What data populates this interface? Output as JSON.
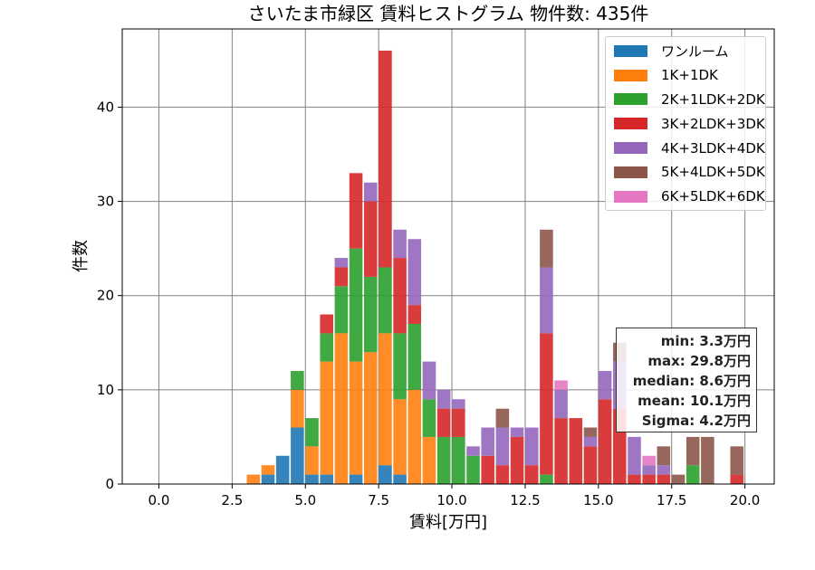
{
  "chart_data": {
    "type": "bar",
    "stacked": true,
    "title": "さいたま市緑区 賃料ヒストグラム 物件数: 435件",
    "xlabel": "賃料[万円]",
    "ylabel": "件数",
    "xlim": [
      -1.25,
      21.0
    ],
    "ylim": [
      0,
      48.3
    ],
    "xticks": [
      0.0,
      2.5,
      5.0,
      7.5,
      10.0,
      12.5,
      15.0,
      17.5,
      20.0
    ],
    "xtick_labels": [
      "0.0",
      "2.5",
      "5.0",
      "7.5",
      "10.0",
      "12.5",
      "15.0",
      "17.5",
      "20.0"
    ],
    "yticks": [
      0,
      10,
      20,
      30,
      40
    ],
    "ytick_labels": [
      "0",
      "10",
      "20",
      "30",
      "40"
    ],
    "grid": true,
    "legend_position": "top-right",
    "bin_width": 0.5,
    "bin_starts": [
      3.0,
      3.5,
      4.0,
      4.5,
      5.0,
      5.5,
      6.0,
      6.5,
      7.0,
      7.5,
      8.0,
      8.5,
      9.0,
      9.5,
      10.0,
      10.5,
      11.0,
      11.5,
      12.0,
      12.5,
      13.0,
      13.5,
      14.0,
      14.5,
      15.0,
      15.5,
      16.0,
      16.5,
      17.0,
      17.5,
      18.0,
      18.5,
      19.0,
      19.5
    ],
    "series": [
      {
        "name": "ワンルーム",
        "color": "#1f77b4",
        "values": [
          0,
          1,
          3,
          6,
          1,
          1,
          0,
          1,
          0,
          2,
          1,
          0,
          0,
          0,
          0,
          0,
          0,
          0,
          0,
          0,
          0,
          0,
          0,
          0,
          0,
          0,
          0,
          0,
          0,
          0,
          0,
          0,
          0,
          0
        ]
      },
      {
        "name": "1K+1DK",
        "color": "#ff7f0e",
        "values": [
          1,
          1,
          0,
          4,
          3,
          12,
          16,
          12,
          14,
          14,
          8,
          10,
          5,
          0,
          0,
          0,
          0,
          0,
          0,
          0,
          0,
          0,
          0,
          0,
          0,
          0,
          0,
          0,
          0,
          0,
          0,
          0,
          0,
          0
        ]
      },
      {
        "name": "2K+1LDK+2DK",
        "color": "#2ca02c",
        "values": [
          0,
          0,
          0,
          2,
          3,
          3,
          5,
          12,
          8,
          7,
          7,
          7,
          4,
          5,
          5,
          3,
          0,
          0,
          0,
          0,
          1,
          0,
          0,
          0,
          0,
          0,
          0,
          0,
          0,
          0,
          2,
          0,
          0,
          0
        ]
      },
      {
        "name": "3K+2LDK+3DK",
        "color": "#d62728",
        "values": [
          0,
          0,
          0,
          0,
          0,
          2,
          2,
          8,
          8,
          23,
          8,
          2,
          0,
          3,
          3,
          0,
          3,
          2,
          5,
          2,
          15,
          7,
          7,
          4,
          9,
          8,
          1,
          1,
          1,
          0,
          0,
          0,
          0,
          1
        ]
      },
      {
        "name": "4K+3LDK+4DK",
        "color": "#9467bd",
        "values": [
          0,
          0,
          0,
          0,
          0,
          0,
          1,
          0,
          2,
          0,
          3,
          7,
          4,
          2,
          1,
          1,
          3,
          4,
          1,
          4,
          7,
          3,
          0,
          1,
          3,
          5,
          4,
          1,
          1,
          0,
          0,
          0,
          0,
          0
        ]
      },
      {
        "name": "5K+4LDK+5DK",
        "color": "#8c564b",
        "values": [
          0,
          0,
          0,
          0,
          0,
          0,
          0,
          0,
          0,
          0,
          0,
          0,
          0,
          0,
          0,
          0,
          0,
          2,
          0,
          0,
          4,
          0,
          0,
          1,
          0,
          2,
          0,
          0,
          2,
          1,
          3,
          5,
          0,
          3
        ]
      },
      {
        "name": "6K+5LDK+6DK",
        "color": "#e377c2",
        "values": [
          0,
          0,
          0,
          0,
          0,
          0,
          0,
          0,
          0,
          0,
          0,
          0,
          0,
          0,
          0,
          0,
          0,
          0,
          0,
          0,
          0,
          1,
          0,
          0,
          0,
          0,
          0,
          1,
          0,
          0,
          0,
          0,
          0,
          0
        ]
      }
    ],
    "stats_position": "right",
    "stats": [
      "min: 3.3万円",
      "max: 29.8万円",
      "median: 8.6万円",
      "mean: 10.1万円",
      "Sigma: 4.2万円"
    ]
  }
}
